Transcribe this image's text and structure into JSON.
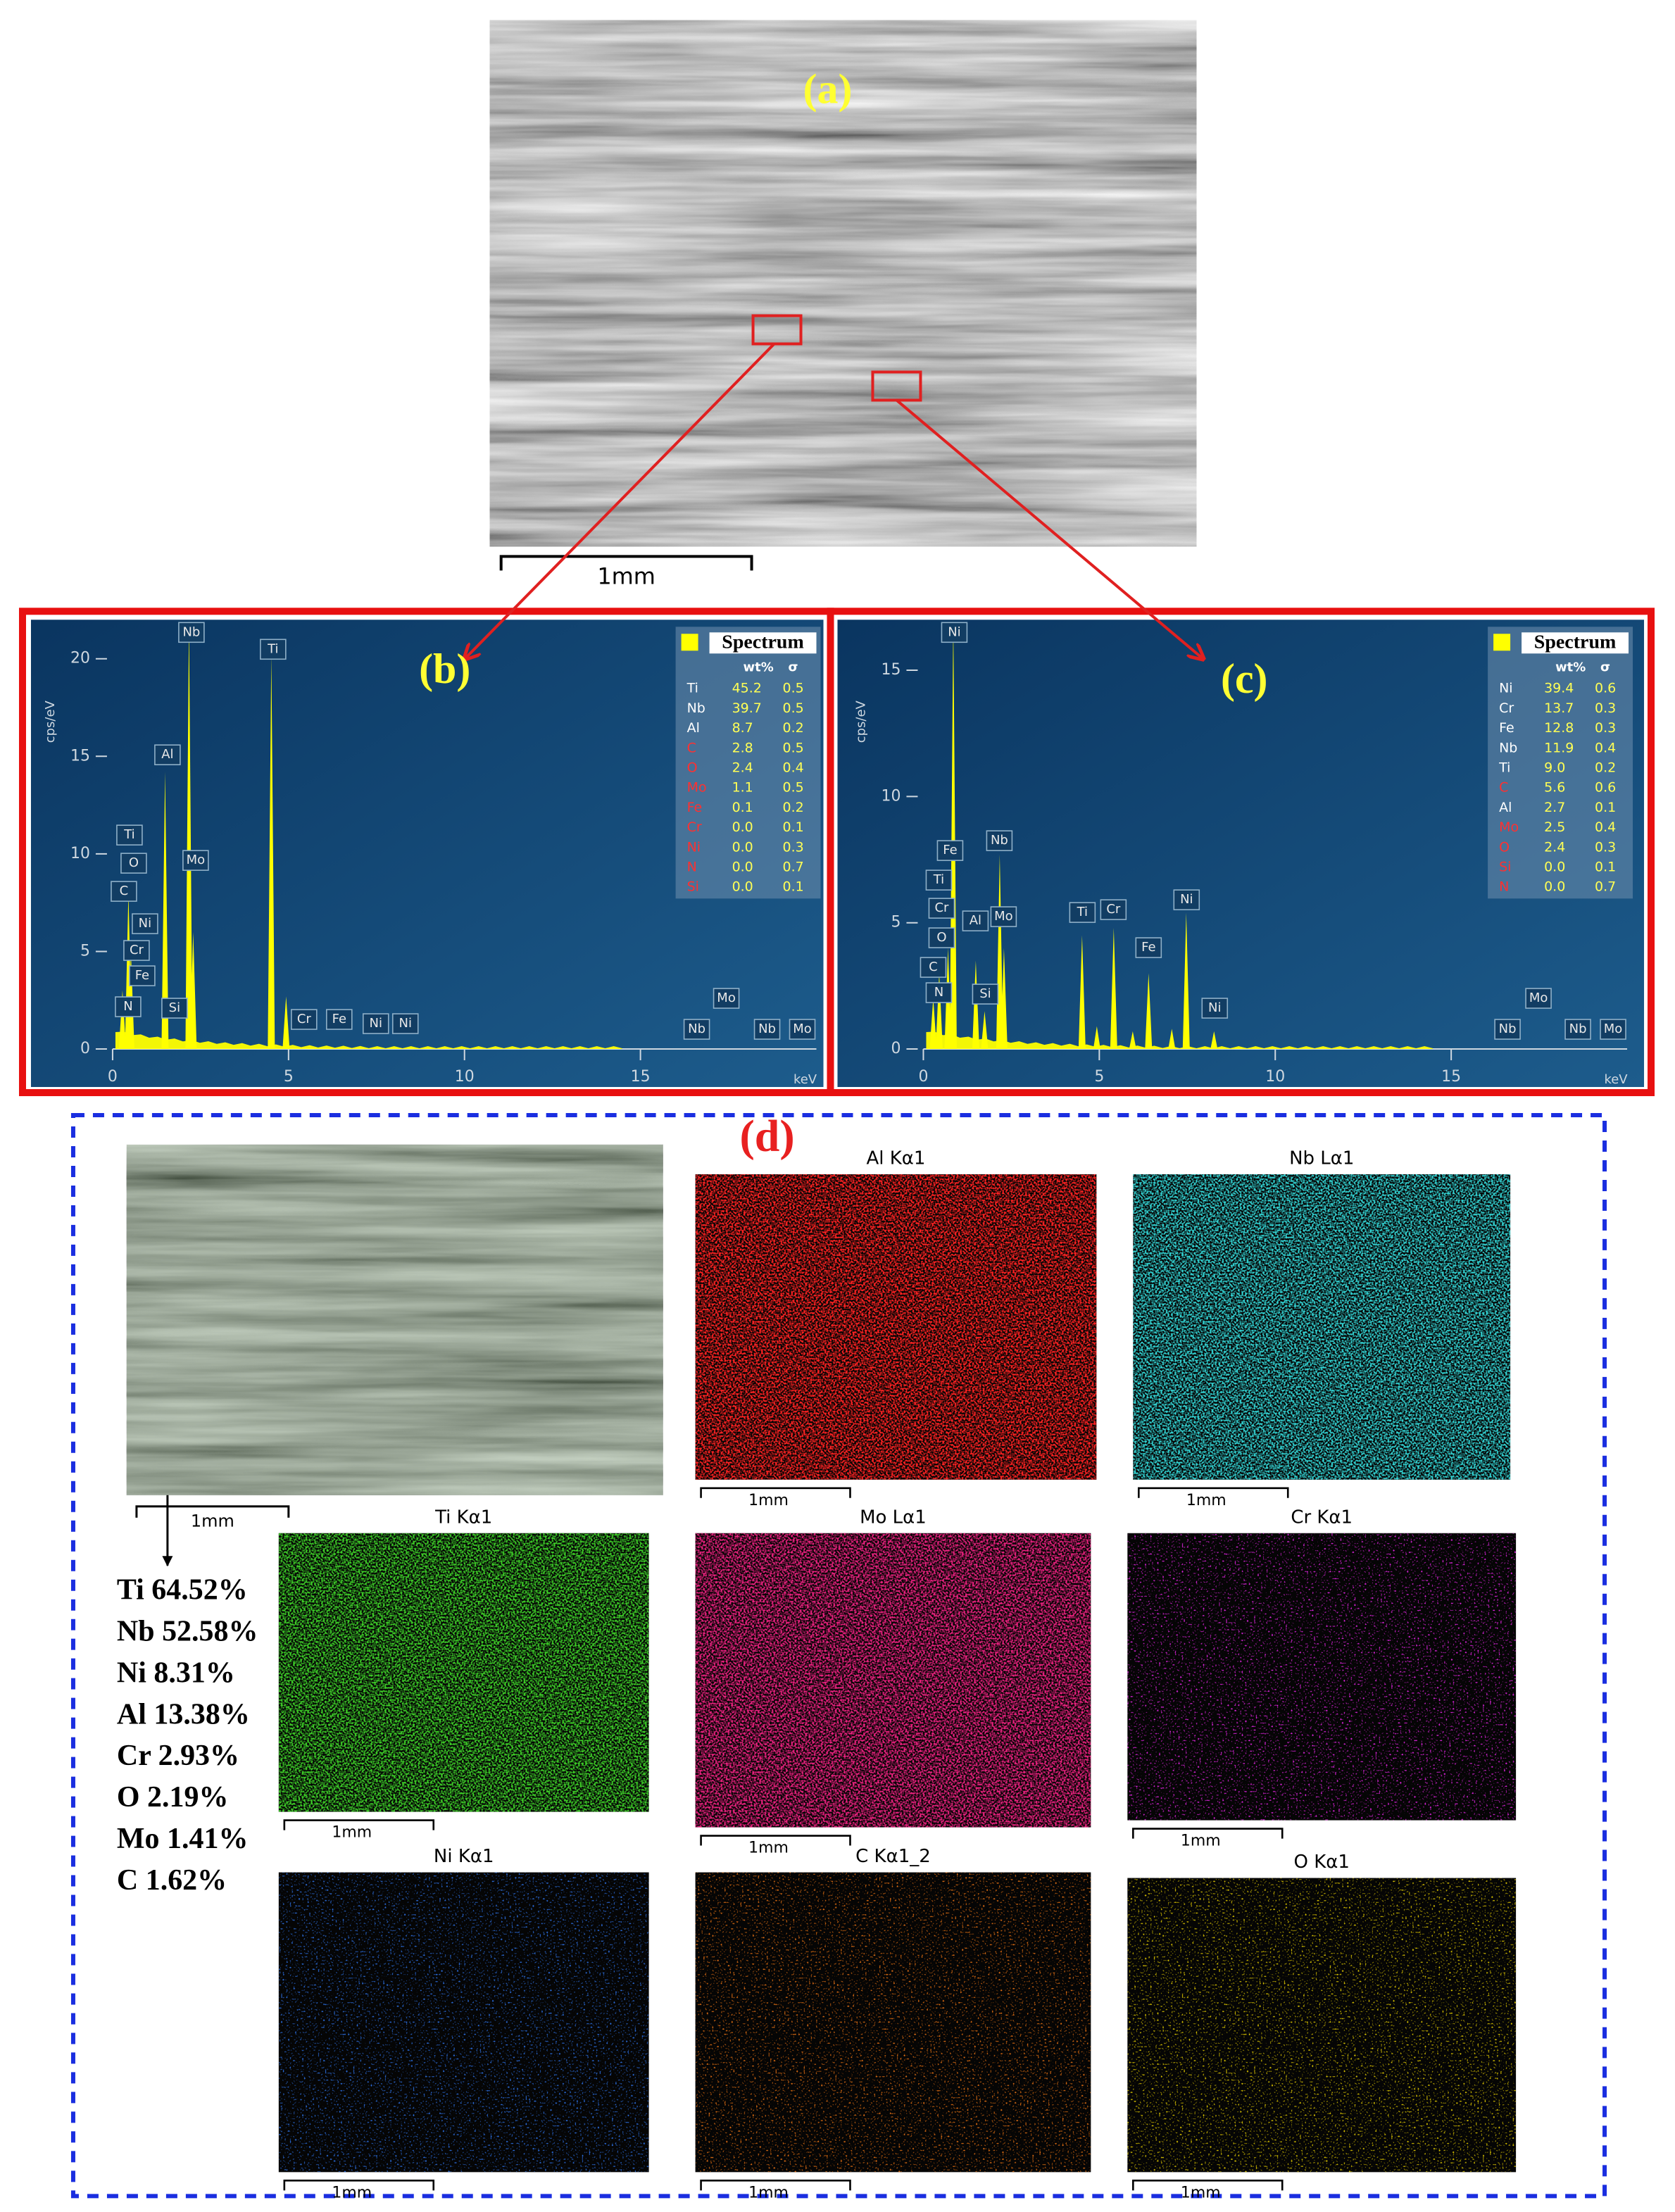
{
  "figure": {
    "a_label": "(a)",
    "a_scale": "1mm",
    "d_label": "(d)",
    "sem_scale": "1mm",
    "composition": [
      "Ti 64.52%",
      "Nb 52.58%",
      "Ni  8.31%",
      "Al 13.38%",
      "Cr  2.93%",
      "O  2.19%",
      "Mo  1.41%",
      "C  1.62%"
    ],
    "maps": [
      {
        "title": "Al Kα1",
        "color": "#ff2222",
        "scale": "1mm"
      },
      {
        "title": "Nb Lα1",
        "color": "#33d2d2",
        "scale": "1mm"
      },
      {
        "title": "Ti Kα1",
        "color": "#3ccc28",
        "scale": "1mm"
      },
      {
        "title": "Mo Lα1",
        "color": "#e8207e",
        "scale": "1mm"
      },
      {
        "title": "Cr Kα1",
        "color": "#d823d8",
        "scale": "1mm"
      },
      {
        "title": "Ni Kα1",
        "color": "#2a6ad8",
        "scale": "1mm"
      },
      {
        "title": "C Kα1_2",
        "color": "#d86a12",
        "scale": "1mm"
      },
      {
        "title": "O Kα1",
        "color": "#d2bc00",
        "scale": "1mm"
      }
    ]
  },
  "chart_data": [
    {
      "type": "spectrum",
      "label": "(b)",
      "xlabel": "keV",
      "ylabel": "cps/eV",
      "color": "#ffff00",
      "xlim": [
        0,
        20
      ],
      "ylim": [
        0,
        22
      ],
      "xticks": [
        0,
        5,
        10,
        15
      ],
      "yticks": [
        0,
        5,
        10,
        15,
        20
      ],
      "x": [
        0.28,
        0.45,
        0.52,
        1.49,
        2.17,
        2.29,
        4.51,
        4.93
      ],
      "values": [
        3,
        8,
        5,
        14.2,
        22,
        6,
        20.2,
        2.7
      ],
      "peak_labels": [
        "Nb",
        "Ti",
        "Al",
        "Ti",
        "O",
        "C",
        "Mo",
        "Ni",
        "Cr",
        "Fe",
        "N",
        "Si",
        "Cr",
        "Fe",
        "Ni",
        "Ni",
        "Nb",
        "Mo",
        "Nb",
        "Mo"
      ],
      "legend": {
        "title": "Spectrum",
        "columns": [
          "wt%",
          "σ"
        ],
        "rows": [
          {
            "element": "Ti",
            "wt": "45.2",
            "sigma": "0.5",
            "color": "#ffffff"
          },
          {
            "element": "Nb",
            "wt": "39.7",
            "sigma": "0.5",
            "color": "#ffffff"
          },
          {
            "element": "Al",
            "wt": "8.7",
            "sigma": "0.2",
            "color": "#ffffff"
          },
          {
            "element": "C",
            "wt": "2.8",
            "sigma": "0.5",
            "color": "#ff3030"
          },
          {
            "element": "O",
            "wt": "2.4",
            "sigma": "0.4",
            "color": "#ff3030"
          },
          {
            "element": "Mo",
            "wt": "1.1",
            "sigma": "0.5",
            "color": "#ff3030"
          },
          {
            "element": "Fe",
            "wt": "0.1",
            "sigma": "0.2",
            "color": "#ff3030"
          },
          {
            "element": "Cr",
            "wt": "0.0",
            "sigma": "0.1",
            "color": "#ff3030"
          },
          {
            "element": "Ni",
            "wt": "0.0",
            "sigma": "0.3",
            "color": "#ff3030"
          },
          {
            "element": "N",
            "wt": "0.0",
            "sigma": "0.7",
            "color": "#ff3030"
          },
          {
            "element": "Si",
            "wt": "0.0",
            "sigma": "0.1",
            "color": "#ff3030"
          }
        ]
      }
    },
    {
      "type": "spectrum",
      "label": "(c)",
      "xlabel": "keV",
      "ylabel": "cps/eV",
      "color": "#ffff00",
      "xlim": [
        0,
        20
      ],
      "ylim": [
        0,
        17
      ],
      "xticks": [
        0,
        5,
        10,
        15
      ],
      "yticks": [
        0,
        5,
        10,
        15
      ],
      "x": [
        0.28,
        0.45,
        0.7,
        0.85,
        1.49,
        1.74,
        2.17,
        2.29,
        4.51,
        4.93,
        5.41,
        5.95,
        6.4,
        7.06,
        7.47,
        8.26
      ],
      "values": [
        2,
        3,
        4,
        17,
        3.5,
        1.5,
        7.7,
        4,
        4.5,
        0.9,
        4.8,
        0.7,
        3,
        0.8,
        5.4,
        0.7
      ],
      "peak_labels": [
        "Ni",
        "Fe",
        "Nb",
        "Ti",
        "Cr",
        "O",
        "C",
        "N",
        "Al",
        "Mo",
        "Si",
        "Ti",
        "Cr",
        "Fe",
        "Ni",
        "Ni",
        "Nb",
        "Mo",
        "Nb",
        "Mo"
      ],
      "legend": {
        "title": "Spectrum",
        "columns": [
          "wt%",
          "σ"
        ],
        "rows": [
          {
            "element": "Ni",
            "wt": "39.4",
            "sigma": "0.6",
            "color": "#ffffff"
          },
          {
            "element": "Cr",
            "wt": "13.7",
            "sigma": "0.3",
            "color": "#ffffff"
          },
          {
            "element": "Fe",
            "wt": "12.8",
            "sigma": "0.3",
            "color": "#ffffff"
          },
          {
            "element": "Nb",
            "wt": "11.9",
            "sigma": "0.4",
            "color": "#ffffff"
          },
          {
            "element": "Ti",
            "wt": "9.0",
            "sigma": "0.2",
            "color": "#ffffff"
          },
          {
            "element": "C",
            "wt": "5.6",
            "sigma": "0.6",
            "color": "#ff3030"
          },
          {
            "element": "Al",
            "wt": "2.7",
            "sigma": "0.1",
            "color": "#ffffff"
          },
          {
            "element": "Mo",
            "wt": "2.5",
            "sigma": "0.4",
            "color": "#ff3030"
          },
          {
            "element": "O",
            "wt": "2.4",
            "sigma": "0.3",
            "color": "#ff3030"
          },
          {
            "element": "Si",
            "wt": "0.0",
            "sigma": "0.1",
            "color": "#ff3030"
          },
          {
            "element": "N",
            "wt": "0.0",
            "sigma": "0.7",
            "color": "#ff3030"
          }
        ]
      }
    }
  ]
}
